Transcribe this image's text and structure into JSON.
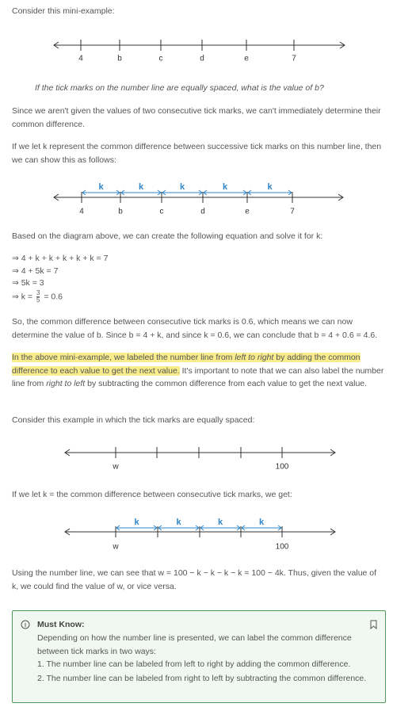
{
  "intro": "Consider this mini-example:",
  "diagrams": [
    {
      "labels": [
        "4",
        "b",
        "c",
        "d",
        "e",
        "7"
      ]
    },
    {
      "labels": [
        "4",
        "b",
        "c",
        "d",
        "e",
        "7"
      ],
      "segment_labels": [
        "k",
        "k",
        "k",
        "k",
        "k"
      ]
    },
    {
      "labels": [
        "w",
        "100"
      ]
    },
    {
      "labels": [
        "w",
        "100"
      ],
      "segment_labels": [
        "k",
        "k",
        "k",
        "k"
      ]
    }
  ],
  "question": "If the tick marks on the number line are equally spaced, what is the value of b?",
  "paragraphs": [
    "Since we aren't given the values of two consecutive tick marks, we can't immediately determine their common difference.",
    "If we let k represent the common difference between successive tick marks on this number line, then we can show this as follows:",
    "Based on the diagram above, we can create the following equation and solve it for k:",
    "So, the common difference between consecutive tick marks is 0.6, which means we can now determine the value of b. Since b = 4 + k, and since k = 0.6, we can conclude that b = 4 + 0.6 = 4.6.",
    "Consider this example in which the tick marks are equally spaced:",
    "If we let k = the common difference between consecutive tick marks, we get:",
    "Using the number line, we can see that w = 100 − k − k − k − k = 100 − 4k. Thus, given the value of k, we could find the value of w, or vice versa."
  ],
  "equations": [
    "⇒ 4 + k + k + k + k + k = 7",
    "⇒ 4 + 5k = 7",
    "⇒ 5k = 3",
    {
      "prefix": "⇒ k =",
      "numerator": "3",
      "denominator": "5",
      "suffix": "= 0.6"
    }
  ],
  "note": {
    "parts": [
      "In the above mini-example, we labeled the number line from ",
      "left to right",
      " by adding the common difference to each value to get the next value.",
      "It's important to note that we can also label the number line from ",
      "right to left",
      " by subtracting the common difference from each value to get the next value."
    ]
  },
  "must_know": {
    "title": "Must Know:",
    "text": "Depending on how the number line is presented, we can label the common difference between tick marks in two ways:",
    "items": [
      "1. The number line can be labeled from left to right by adding the common difference.",
      "2. The number line can be labeled from right to left by subtracting the common difference."
    ]
  }
}
